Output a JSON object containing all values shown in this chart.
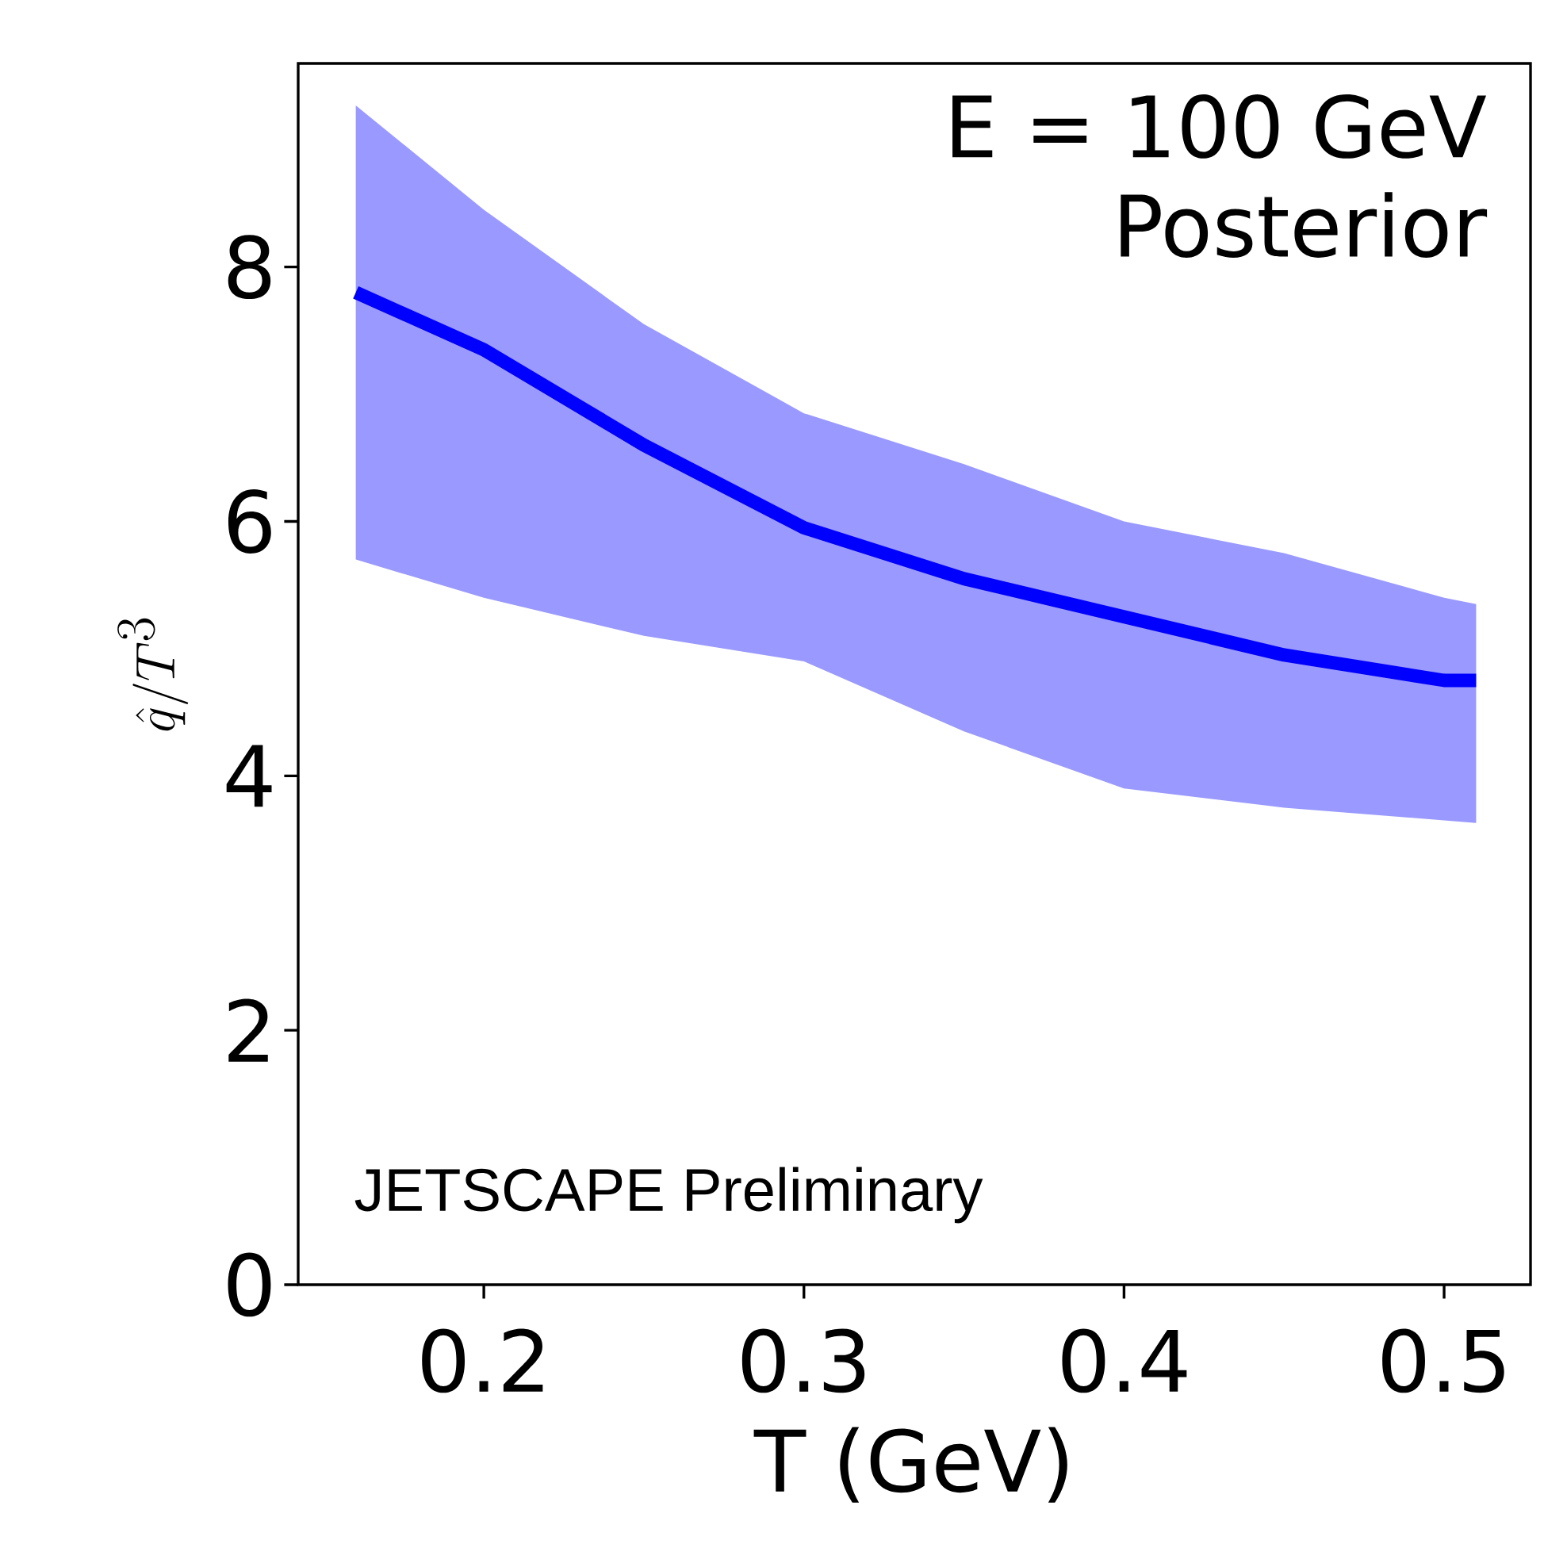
{
  "chart_data": {
    "type": "line",
    "xlabel": "T (GeV)",
    "ylabel": "\\hat{q}/T^3",
    "annotations": [
      "E = 100 GeV",
      "Posterior",
      "JETSCAPE Preliminary"
    ],
    "x": [
      0.16,
      0.2,
      0.25,
      0.3,
      0.35,
      0.4,
      0.45,
      0.5,
      0.51
    ],
    "series": [
      {
        "color": "#0000ff",
        "values": [
          7.8,
          7.35,
          6.6,
          5.95,
          5.55,
          5.25,
          4.95,
          4.75,
          4.75
        ],
        "lower": [
          5.7,
          5.4,
          5.1,
          4.9,
          4.35,
          3.9,
          3.75,
          3.65,
          3.63
        ],
        "upper": [
          9.27,
          8.45,
          7.55,
          6.85,
          6.45,
          6.0,
          5.75,
          5.4,
          5.35
        ]
      }
    ],
    "xlim": [
      0.142,
      0.527
    ],
    "ylim": [
      0,
      9.6
    ],
    "xticks": [
      0.2,
      0.3,
      0.4,
      0.5
    ],
    "yticks": [
      0,
      2,
      4,
      6,
      8
    ],
    "grid": false,
    "marker": "none",
    "line_style": "solid"
  }
}
